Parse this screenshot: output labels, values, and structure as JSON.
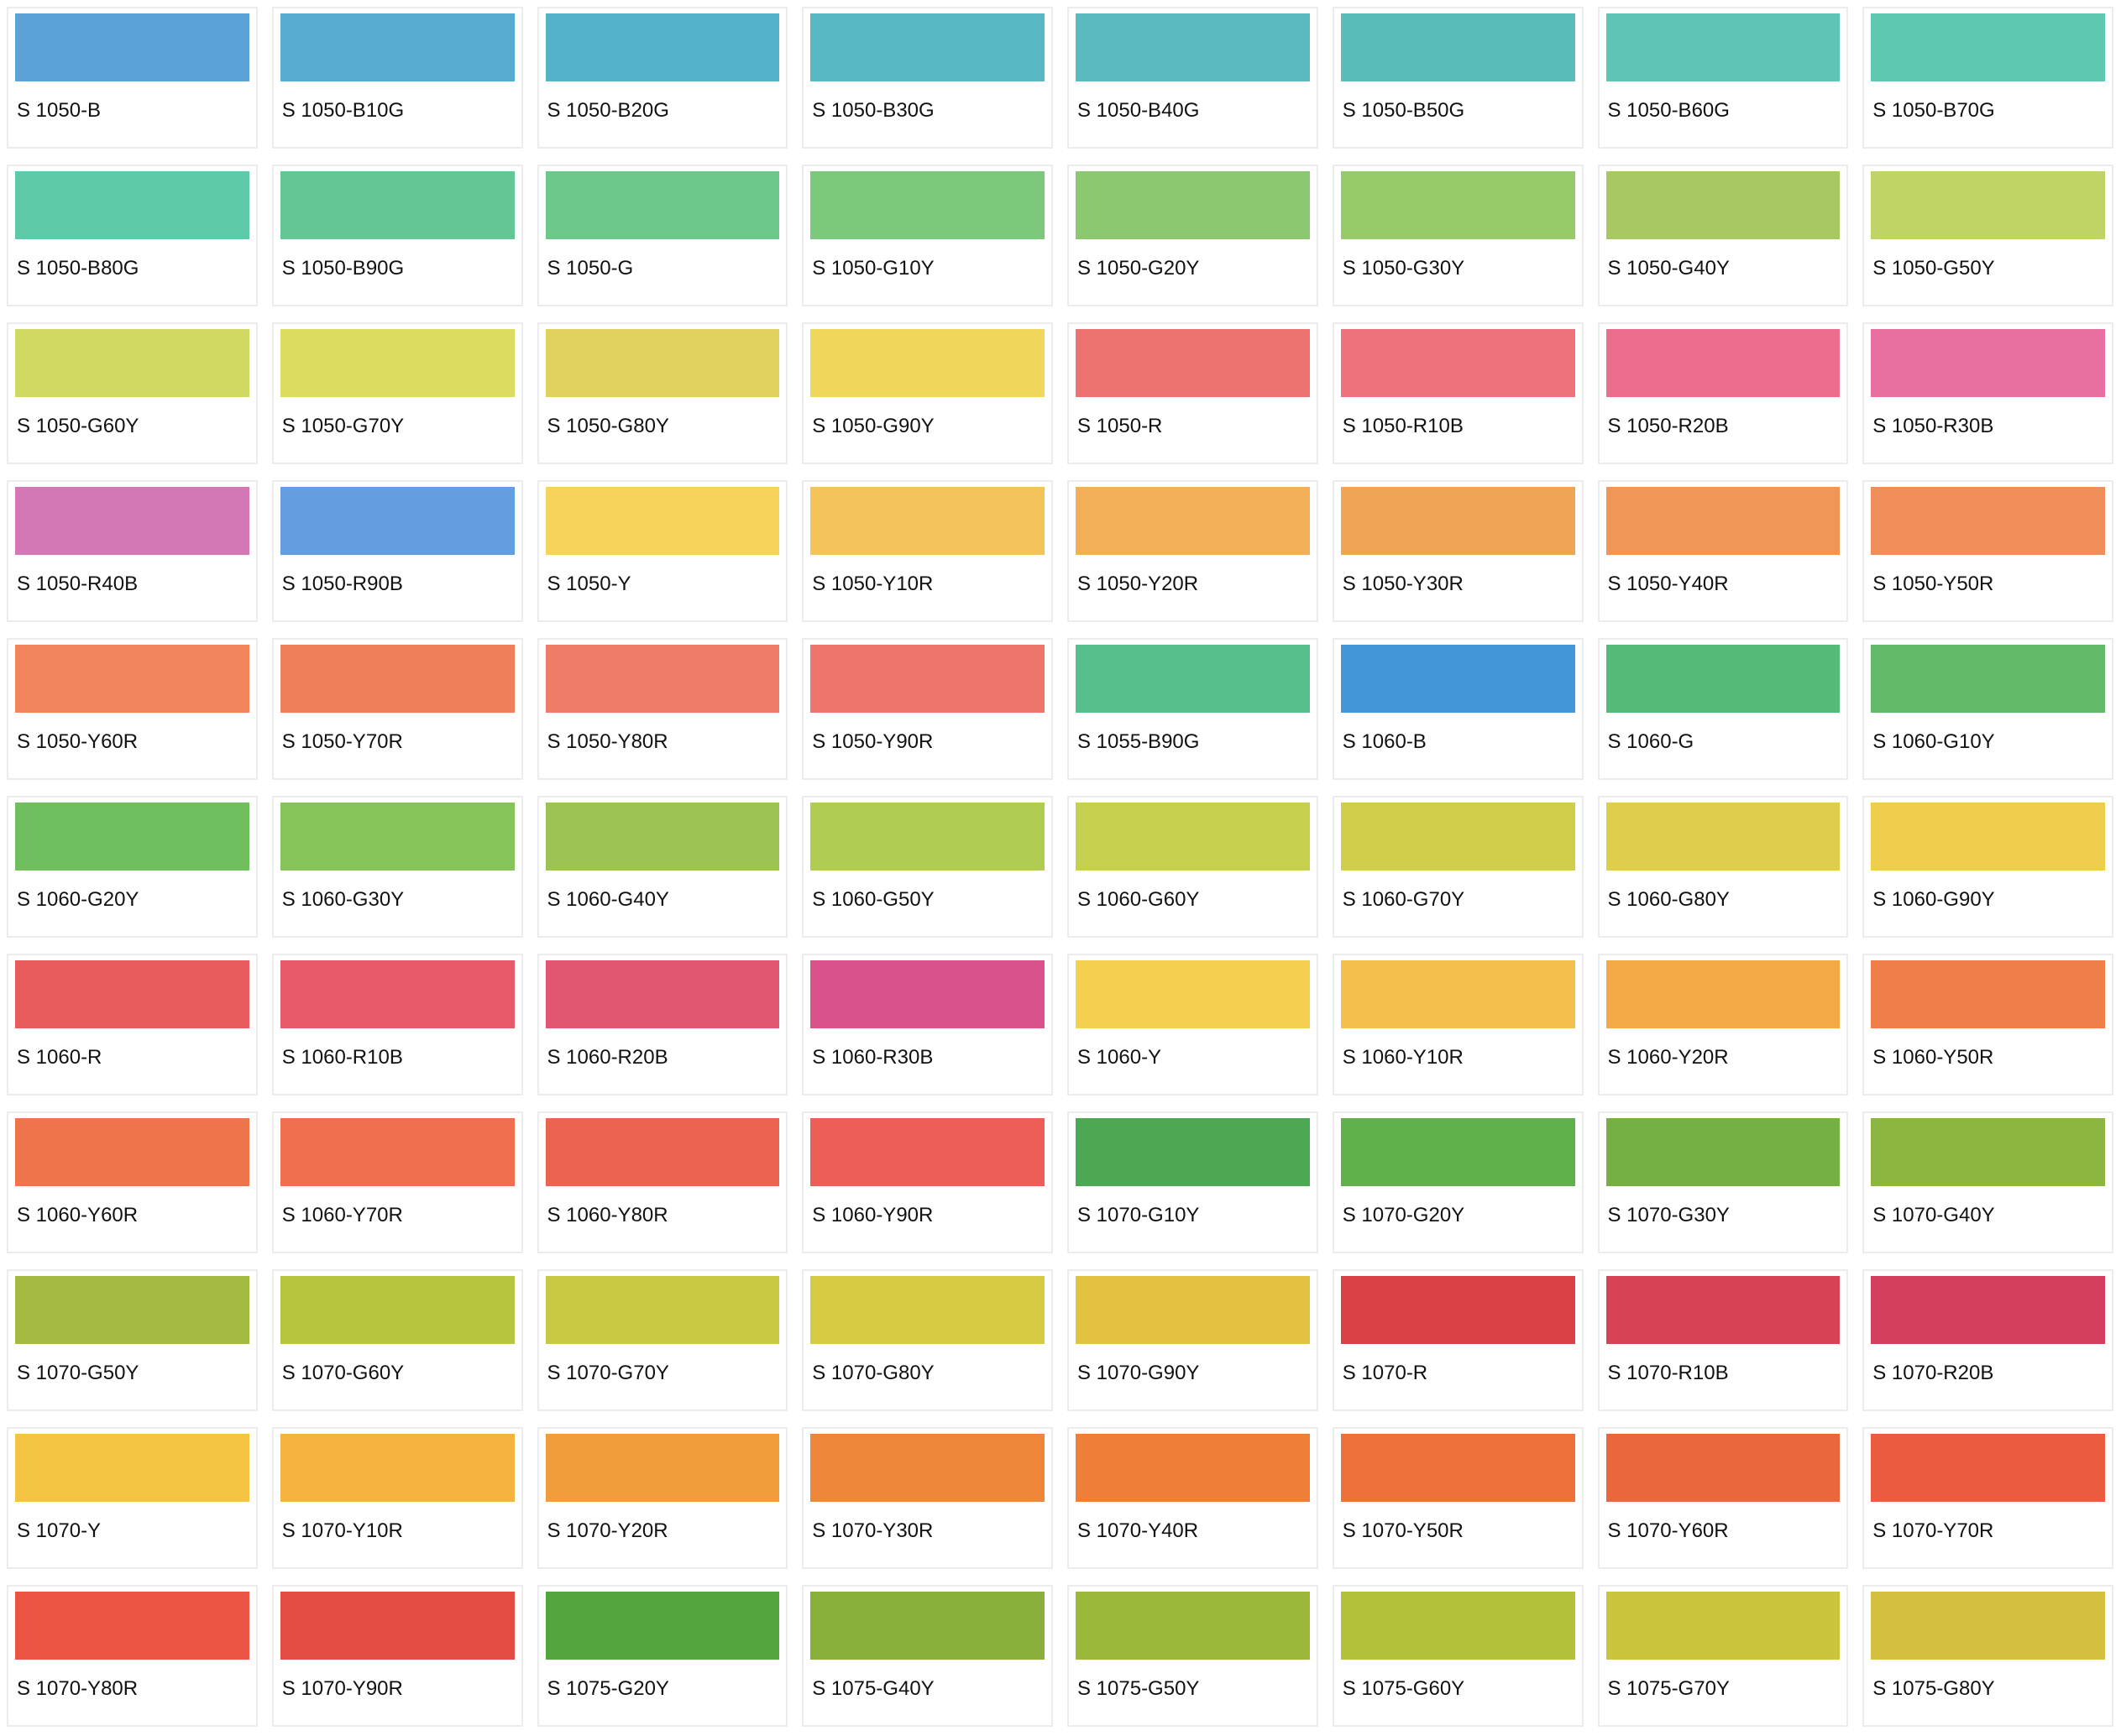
{
  "swatches": [
    {
      "name": "S 1050-B",
      "color": "#5ba3d6"
    },
    {
      "name": "S 1050-B10G",
      "color": "#55acd0"
    },
    {
      "name": "S 1050-B20G",
      "color": "#53b3c8"
    },
    {
      "name": "S 1050-B30G",
      "color": "#58b8c4"
    },
    {
      "name": "S 1050-B40G",
      "color": "#5abac0"
    },
    {
      "name": "S 1050-B50G",
      "color": "#5abcb8"
    },
    {
      "name": "S 1050-B60G",
      "color": "#5ec5b6"
    },
    {
      "name": "S 1050-B70G",
      "color": "#5ec8b0"
    },
    {
      "name": "S 1050-B80G",
      "color": "#5fcaa9"
    },
    {
      "name": "S 1050-B90G",
      "color": "#64c694"
    },
    {
      "name": "S 1050-G",
      "color": "#6cc78a"
    },
    {
      "name": "S 1050-G10Y",
      "color": "#7cc97b"
    },
    {
      "name": "S 1050-G20Y",
      "color": "#8bc86f"
    },
    {
      "name": "S 1050-G30Y",
      "color": "#97cb69"
    },
    {
      "name": "S 1050-G40Y",
      "color": "#a8c864"
    },
    {
      "name": "S 1050-G50Y",
      "color": "#bed464"
    },
    {
      "name": "S 1050-G60Y",
      "color": "#cfd962"
    },
    {
      "name": "S 1050-G70Y",
      "color": "#dadd60"
    },
    {
      "name": "S 1050-G80Y",
      "color": "#e1d25e"
    },
    {
      "name": "S 1050-G90Y",
      "color": "#f0d75c"
    },
    {
      "name": "S 1050-R",
      "color": "#ec7370"
    },
    {
      "name": "S 1050-R10B",
      "color": "#ee727c"
    },
    {
      "name": "S 1050-R20B",
      "color": "#eb6f8c"
    },
    {
      "name": "S 1050-R30B",
      "color": "#e870a0"
    },
    {
      "name": "S 1050-R40B",
      "color": "#d477b5"
    },
    {
      "name": "S 1050-R90B",
      "color": "#639fe0"
    },
    {
      "name": "S 1050-Y",
      "color": "#f6d45b"
    },
    {
      "name": "S 1050-Y10R",
      "color": "#f4c45b"
    },
    {
      "name": "S 1050-Y20R",
      "color": "#f3b058"
    },
    {
      "name": "S 1050-Y30R",
      "color": "#f0a456"
    },
    {
      "name": "S 1050-Y40R",
      "color": "#f09656"
    },
    {
      "name": "S 1050-Y50R",
      "color": "#f08e5a"
    },
    {
      "name": "S 1050-Y60R",
      "color": "#f2845b"
    },
    {
      "name": "S 1050-Y70R",
      "color": "#ef7f5a"
    },
    {
      "name": "S 1050-Y80R",
      "color": "#ef7c69"
    },
    {
      "name": "S 1050-Y90R",
      "color": "#ee756c"
    },
    {
      "name": "S 1055-B90G",
      "color": "#57bf8b"
    },
    {
      "name": "S 1060-B",
      "color": "#4396d8"
    },
    {
      "name": "S 1060-G",
      "color": "#55b978"
    },
    {
      "name": "S 1060-G10Y",
      "color": "#62b967"
    },
    {
      "name": "S 1060-G20Y",
      "color": "#70be5e"
    },
    {
      "name": "S 1060-G30Y",
      "color": "#86c35b"
    },
    {
      "name": "S 1060-G40Y",
      "color": "#9cc353"
    },
    {
      "name": "S 1060-G50Y",
      "color": "#b0cc51"
    },
    {
      "name": "S 1060-G60Y",
      "color": "#c5d04e"
    },
    {
      "name": "S 1060-G70Y",
      "color": "#d1ce4c"
    },
    {
      "name": "S 1060-G80Y",
      "color": "#dfcd4c"
    },
    {
      "name": "S 1060-G90Y",
      "color": "#eecc4c"
    },
    {
      "name": "S 1060-R",
      "color": "#e95c5e"
    },
    {
      "name": "S 1060-R10B",
      "color": "#e85a6a"
    },
    {
      "name": "S 1060-R20B",
      "color": "#e25674"
    },
    {
      "name": "S 1060-R30B",
      "color": "#d9528a"
    },
    {
      "name": "S 1060-Y",
      "color": "#f5d050"
    },
    {
      "name": "S 1060-Y10R",
      "color": "#f4bf4c"
    },
    {
      "name": "S 1060-Y20R",
      "color": "#f2a946"
    },
    {
      "name": "S 1060-Y50R",
      "color": "#ef7e48"
    },
    {
      "name": "S 1060-Y60R",
      "color": "#ee744b"
    },
    {
      "name": "S 1060-Y70R",
      "color": "#f06e4e"
    },
    {
      "name": "S 1060-Y80R",
      "color": "#ec6451"
    },
    {
      "name": "S 1060-Y90R",
      "color": "#ec5f57"
    },
    {
      "name": "S 1070-G10Y",
      "color": "#4da853"
    },
    {
      "name": "S 1070-G20Y",
      "color": "#62b04b"
    },
    {
      "name": "S 1070-G30Y",
      "color": "#76b045"
    },
    {
      "name": "S 1070-G40Y",
      "color": "#8db640"
    },
    {
      "name": "S 1070-G50Y",
      "color": "#a2ba40"
    },
    {
      "name": "S 1070-G60Y",
      "color": "#b6c440"
    },
    {
      "name": "S 1070-G70Y",
      "color": "#c8c843"
    },
    {
      "name": "S 1070-G80Y",
      "color": "#d7ca43"
    },
    {
      "name": "S 1070-G90Y",
      "color": "#e4c241"
    },
    {
      "name": "S 1070-R",
      "color": "#d94147"
    },
    {
      "name": "S 1070-R10B",
      "color": "#d74254"
    },
    {
      "name": "S 1070-R20B",
      "color": "#d23f5c"
    },
    {
      "name": "S 1070-Y",
      "color": "#f5c342"
    },
    {
      "name": "S 1070-Y10R",
      "color": "#f4b23e"
    },
    {
      "name": "S 1070-Y20R",
      "color": "#f09e3b"
    },
    {
      "name": "S 1070-Y30R",
      "color": "#ef873a"
    },
    {
      "name": "S 1070-Y40R",
      "color": "#ee7e38"
    },
    {
      "name": "S 1070-Y50R",
      "color": "#ee703b"
    },
    {
      "name": "S 1070-Y60R",
      "color": "#ea673d"
    },
    {
      "name": "S 1070-Y70R",
      "color": "#eb5b3d"
    },
    {
      "name": "S 1070-Y80R",
      "color": "#ec5544"
    },
    {
      "name": "S 1070-Y90R",
      "color": "#e34c43"
    },
    {
      "name": "S 1075-G20Y",
      "color": "#55a53f"
    },
    {
      "name": "S 1075-G40Y",
      "color": "#88b03a"
    },
    {
      "name": "S 1075-G50Y",
      "color": "#9cb83a"
    },
    {
      "name": "S 1075-G60Y",
      "color": "#b3c03b"
    },
    {
      "name": "S 1075-G70Y",
      "color": "#c9c43b"
    },
    {
      "name": "S 1075-G80Y",
      "color": "#d4c03e"
    }
  ]
}
